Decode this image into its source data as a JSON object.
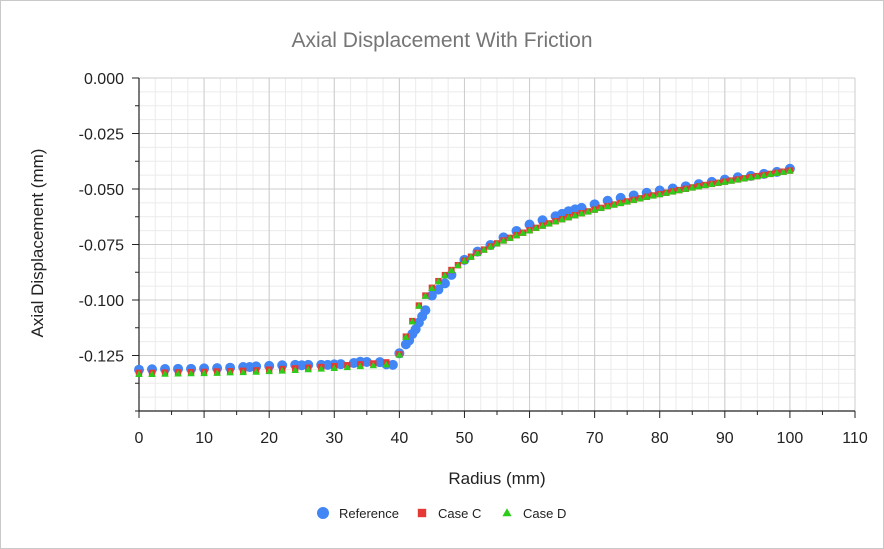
{
  "chart_data": {
    "type": "scatter",
    "title": "Axial Displacement With Friction",
    "xlabel": "Radius (mm)",
    "ylabel": "Axial Displacement (mm)",
    "xlim": [
      0,
      110
    ],
    "ylim": [
      -0.15,
      0.0
    ],
    "xticks": [
      0,
      10,
      20,
      30,
      40,
      50,
      60,
      70,
      80,
      90,
      100,
      110
    ],
    "yticks": [
      0.0,
      -0.025,
      -0.05,
      -0.075,
      -0.1,
      -0.125
    ],
    "xtick_labels": [
      "0",
      "10",
      "20",
      "30",
      "40",
      "50",
      "60",
      "70",
      "80",
      "90",
      "100",
      "110"
    ],
    "ytick_labels": [
      "0.000",
      "-0.025",
      "-0.050",
      "-0.075",
      "-0.100",
      "-0.125"
    ],
    "grid": true,
    "legend_position": "bottom-center",
    "series": [
      {
        "name": "Reference",
        "color": "#4285f4",
        "marker": "circle",
        "x": [
          0,
          2,
          4,
          6,
          8,
          10,
          12,
          14,
          16,
          17,
          18,
          20,
          22,
          24,
          25,
          26,
          28,
          29,
          30,
          31,
          33,
          34,
          35,
          37,
          38,
          39,
          40,
          41,
          41.5,
          42,
          42.5,
          43,
          43.5,
          44,
          45,
          46,
          47,
          48,
          50,
          52,
          54,
          56,
          58,
          60,
          62,
          64,
          65,
          66,
          67,
          68,
          70,
          72,
          74,
          76,
          78,
          80,
          82,
          84,
          86,
          88,
          90,
          92,
          94,
          96,
          98,
          100
        ],
        "y": [
          -0.1314,
          -0.1312,
          -0.1311,
          -0.131,
          -0.131,
          -0.1308,
          -0.1307,
          -0.1305,
          -0.1302,
          -0.1302,
          -0.1299,
          -0.1297,
          -0.1294,
          -0.1292,
          -0.1294,
          -0.1292,
          -0.1292,
          -0.1292,
          -0.129,
          -0.1289,
          -0.1284,
          -0.1278,
          -0.1279,
          -0.128,
          -0.129,
          -0.1292,
          -0.124,
          -0.12,
          -0.1182,
          -0.1153,
          -0.1132,
          -0.1102,
          -0.1074,
          -0.1046,
          -0.098,
          -0.0953,
          -0.0925,
          -0.0887,
          -0.0819,
          -0.0782,
          -0.0752,
          -0.0718,
          -0.0689,
          -0.066,
          -0.0641,
          -0.0623,
          -0.0612,
          -0.06,
          -0.0592,
          -0.0585,
          -0.0569,
          -0.0553,
          -0.054,
          -0.0529,
          -0.0517,
          -0.0507,
          -0.0498,
          -0.0488,
          -0.0478,
          -0.0468,
          -0.0458,
          -0.0447,
          -0.0441,
          -0.0432,
          -0.0423,
          -0.0409
        ]
      },
      {
        "name": "Case C",
        "color": "#e53935",
        "marker": "square",
        "x": [
          0,
          2,
          4,
          6,
          8,
          10,
          12,
          14,
          16,
          18,
          20,
          22,
          24,
          26,
          28,
          30,
          32,
          34,
          36,
          38,
          40,
          41,
          42,
          43,
          44,
          45,
          46,
          47,
          48,
          49,
          50,
          51,
          52,
          53,
          54,
          55,
          56,
          57,
          58,
          59,
          60,
          61,
          62,
          63,
          64,
          65,
          66,
          67,
          68,
          69,
          70,
          71,
          72,
          73,
          74,
          75,
          76,
          77,
          78,
          79,
          80,
          81,
          82,
          83,
          84,
          85,
          86,
          87,
          88,
          89,
          90,
          91,
          92,
          93,
          94,
          95,
          96,
          97,
          98,
          99,
          100
        ],
        "y": [
          -0.1328,
          -0.1328,
          -0.1327,
          -0.1326,
          -0.1325,
          -0.1324,
          -0.1322,
          -0.1321,
          -0.1319,
          -0.1317,
          -0.1314,
          -0.1311,
          -0.1308,
          -0.1305,
          -0.1302,
          -0.1298,
          -0.1294,
          -0.129,
          -0.1286,
          -0.1281,
          -0.1245,
          -0.1165,
          -0.1095,
          -0.1025,
          -0.098,
          -0.0945,
          -0.0915,
          -0.0888,
          -0.0865,
          -0.0843,
          -0.0823,
          -0.0805,
          -0.0788,
          -0.0773,
          -0.0759,
          -0.0745,
          -0.0732,
          -0.072,
          -0.0708,
          -0.0697,
          -0.0686,
          -0.0675,
          -0.0665,
          -0.0655,
          -0.0645,
          -0.0636,
          -0.0627,
          -0.0618,
          -0.0609,
          -0.0601,
          -0.0593,
          -0.0585,
          -0.0577,
          -0.057,
          -0.0563,
          -0.0556,
          -0.0549,
          -0.0542,
          -0.0535,
          -0.0529,
          -0.0523,
          -0.0517,
          -0.0511,
          -0.0505,
          -0.0499,
          -0.0493,
          -0.0488,
          -0.0482,
          -0.0477,
          -0.0472,
          -0.0467,
          -0.0462,
          -0.0457,
          -0.0452,
          -0.0447,
          -0.0442,
          -0.0437,
          -0.0432,
          -0.0427,
          -0.0422,
          -0.0417
        ]
      },
      {
        "name": "Case D",
        "color": "#2ecc1a",
        "marker": "triangle",
        "x": [
          0,
          2,
          4,
          6,
          8,
          10,
          12,
          14,
          16,
          18,
          20,
          22,
          24,
          26,
          28,
          30,
          32,
          34,
          36,
          38,
          40,
          41,
          42,
          43,
          44,
          45,
          46,
          47,
          48,
          49,
          50,
          51,
          52,
          53,
          54,
          55,
          56,
          57,
          58,
          59,
          60,
          61,
          62,
          63,
          64,
          65,
          66,
          67,
          68,
          69,
          70,
          71,
          72,
          73,
          74,
          75,
          76,
          77,
          78,
          79,
          80,
          81,
          82,
          83,
          84,
          85,
          86,
          87,
          88,
          89,
          90,
          91,
          92,
          93,
          94,
          95,
          96,
          97,
          98,
          99,
          100
        ],
        "y": [
          -0.1335,
          -0.1335,
          -0.1334,
          -0.1333,
          -0.1332,
          -0.1331,
          -0.133,
          -0.1328,
          -0.1327,
          -0.1325,
          -0.1322,
          -0.132,
          -0.1317,
          -0.1314,
          -0.1311,
          -0.1308,
          -0.1304,
          -0.13,
          -0.1296,
          -0.1292,
          -0.1248,
          -0.1168,
          -0.1098,
          -0.1028,
          -0.0983,
          -0.0948,
          -0.0918,
          -0.0891,
          -0.0867,
          -0.0845,
          -0.0825,
          -0.0807,
          -0.079,
          -0.0775,
          -0.0761,
          -0.0747,
          -0.0734,
          -0.0722,
          -0.071,
          -0.0699,
          -0.0688,
          -0.0677,
          -0.0667,
          -0.0657,
          -0.0647,
          -0.0638,
          -0.0629,
          -0.062,
          -0.0611,
          -0.0603,
          -0.0595,
          -0.0587,
          -0.0579,
          -0.0572,
          -0.0565,
          -0.0558,
          -0.0551,
          -0.0544,
          -0.0537,
          -0.0531,
          -0.0525,
          -0.0519,
          -0.0513,
          -0.0507,
          -0.0501,
          -0.0495,
          -0.049,
          -0.0484,
          -0.0479,
          -0.0474,
          -0.0469,
          -0.0464,
          -0.0459,
          -0.0454,
          -0.0449,
          -0.0444,
          -0.0439,
          -0.0434,
          -0.0429,
          -0.0424,
          -0.0419
        ]
      }
    ]
  }
}
